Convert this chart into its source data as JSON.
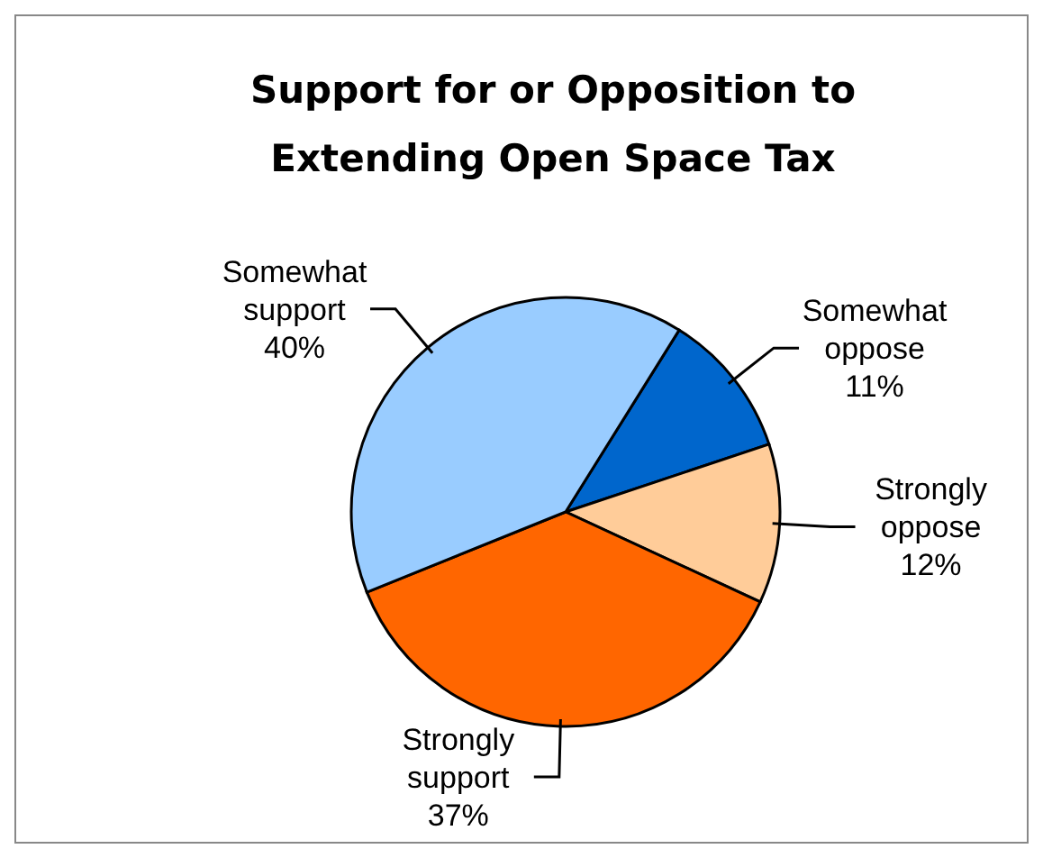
{
  "chart_data": {
    "type": "pie",
    "title": "Support for or Opposition to Extending Open Space Tax",
    "categories": [
      "Somewhat oppose",
      "Strongly oppose",
      "Strongly support",
      "Somewhat support"
    ],
    "values": [
      11,
      12,
      37,
      40
    ],
    "colors": [
      "#0066cc",
      "#ffcc99",
      "#ff6600",
      "#99ccff"
    ],
    "value_labels": [
      "11%",
      "12%",
      "37%",
      "40%"
    ]
  }
}
